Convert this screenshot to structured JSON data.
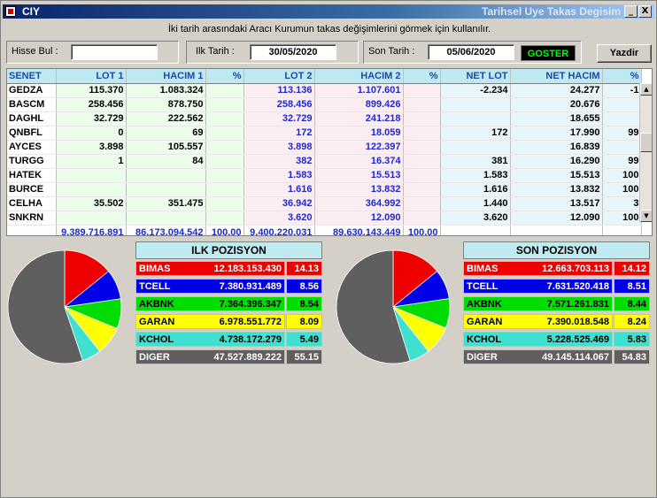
{
  "window": {
    "code": "CIY",
    "caption": "Tarihsel Uye Takas Degisim",
    "minimize_glyph": "_",
    "close_glyph": "X"
  },
  "description": "İki tarih arasındaki  Aracı Kurumun takas değişimlerini görmek için kullanılır.",
  "filters": {
    "hisse_label": "Hisse Bul :",
    "hisse_value": "",
    "ilk_tarih_label": "Ilk Tarih :",
    "ilk_tarih_value": "30/05/2020",
    "son_tarih_label": "Son Tarih :",
    "son_tarih_value": "05/06/2020",
    "goster_label": "GOSTER",
    "yazdir_label": "Yazdir"
  },
  "grid": {
    "headers": [
      "SENET",
      "LOT 1",
      "HACIM 1",
      "%",
      "LOT 2",
      "HACIM 2",
      "%",
      "NET LOT",
      "NET HACIM",
      "%"
    ],
    "rows": [
      [
        "GEDZA",
        "115.370",
        "1.083.324",
        "",
        "113.136",
        "1.107.601",
        "",
        "-2.234",
        "24.277",
        "-1"
      ],
      [
        "BASCM",
        "258.456",
        "878.750",
        "",
        "258.456",
        "899.426",
        "",
        "",
        "20.676",
        ""
      ],
      [
        "DAGHL",
        "32.729",
        "222.562",
        "",
        "32.729",
        "241.218",
        "",
        "",
        "18.655",
        ""
      ],
      [
        "QNBFL",
        "0",
        "69",
        "",
        "172",
        "18.059",
        "",
        "172",
        "17.990",
        "99"
      ],
      [
        "AYCES",
        "3.898",
        "105.557",
        "",
        "3.898",
        "122.397",
        "",
        "",
        "16.839",
        ""
      ],
      [
        "TURGG",
        "1",
        "84",
        "",
        "382",
        "16.374",
        "",
        "381",
        "16.290",
        "99"
      ],
      [
        "HATEK",
        "",
        "",
        "",
        "1.583",
        "15.513",
        "",
        "1.583",
        "15.513",
        "100"
      ],
      [
        "BURCE",
        "",
        "",
        "",
        "1.616",
        "13.832",
        "",
        "1.616",
        "13.832",
        "100"
      ],
      [
        "CELHA",
        "35.502",
        "351.475",
        "",
        "36.942",
        "364.992",
        "",
        "1.440",
        "13.517",
        "3"
      ],
      [
        "SNKRN",
        "",
        "",
        "",
        "3.620",
        "12.090",
        "",
        "3.620",
        "12.090",
        "100"
      ]
    ],
    "totals": [
      "",
      "9.389.716.891",
      "86.173.094.542",
      "100,00",
      "9.400.220.031",
      "89.630.143.449",
      "100,00",
      "",
      "",
      ""
    ]
  },
  "ilk_pozisyon": {
    "title": "ILK POZISYON",
    "rows": [
      {
        "name": "BIMAS",
        "value": "12.183.153.430",
        "pct": "14.13",
        "pct_num": 14.13,
        "color": "#ee0000",
        "fg": "#ffffff"
      },
      {
        "name": "TCELL",
        "value": "7.380.931.489",
        "pct": "8.56",
        "pct_num": 8.56,
        "color": "#0000e8",
        "fg": "#ffffff"
      },
      {
        "name": "AKBNK",
        "value": "7.364.396.347",
        "pct": "8.54",
        "pct_num": 8.54,
        "color": "#00dd00",
        "fg": "#000000"
      },
      {
        "name": "GARAN",
        "value": "6.978.551.772",
        "pct": "8.09",
        "pct_num": 8.09,
        "color": "#ffff00",
        "fg": "#000000"
      },
      {
        "name": "KCHOL",
        "value": "4.738.172.279",
        "pct": "5.49",
        "pct_num": 5.49,
        "color": "#40e0d0",
        "fg": "#000000"
      },
      {
        "name": "DIGER",
        "value": "47.527.889.222",
        "pct": "55.15",
        "pct_num": 55.15,
        "color": "#5f5f5f",
        "fg": "#ffffff"
      }
    ]
  },
  "son_pozisyon": {
    "title": "SON POZISYON",
    "rows": [
      {
        "name": "BIMAS",
        "value": "12.663.703.113",
        "pct": "14.12",
        "pct_num": 14.12,
        "color": "#ee0000",
        "fg": "#ffffff"
      },
      {
        "name": "TCELL",
        "value": "7.631.520.418",
        "pct": "8.51",
        "pct_num": 8.51,
        "color": "#0000e8",
        "fg": "#ffffff"
      },
      {
        "name": "AKBNK",
        "value": "7.571.261.831",
        "pct": "8.44",
        "pct_num": 8.44,
        "color": "#00dd00",
        "fg": "#000000"
      },
      {
        "name": "GARAN",
        "value": "7.390.018.548",
        "pct": "8.24",
        "pct_num": 8.24,
        "color": "#ffff00",
        "fg": "#000000"
      },
      {
        "name": "KCHOL",
        "value": "5.228.525.469",
        "pct": "5.83",
        "pct_num": 5.83,
        "color": "#40e0d0",
        "fg": "#000000"
      },
      {
        "name": "DIGER",
        "value": "49.145.114.067",
        "pct": "54.83",
        "pct_num": 54.83,
        "color": "#5f5f5f",
        "fg": "#ffffff"
      }
    ]
  }
}
